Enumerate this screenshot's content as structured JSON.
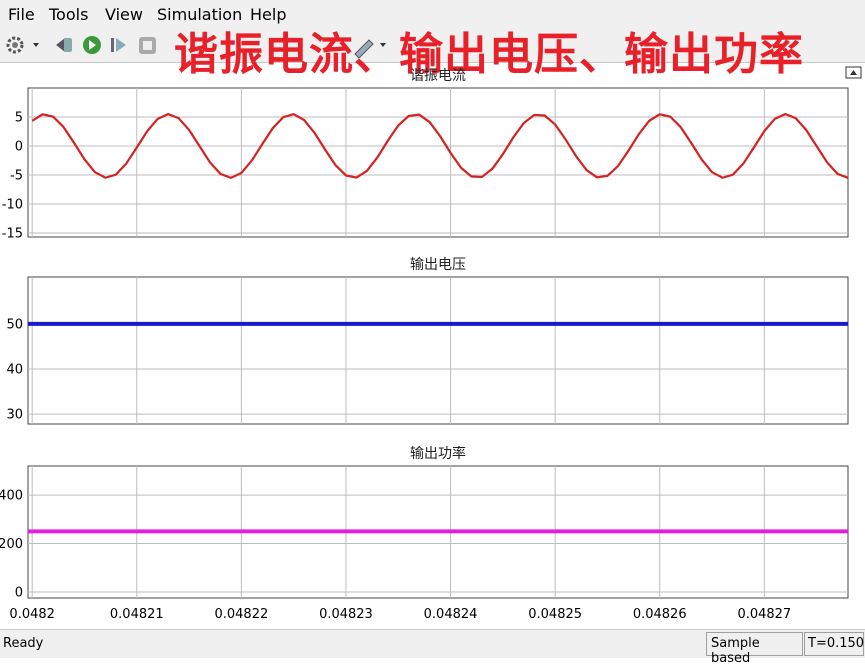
{
  "menu": [
    "File",
    "Tools",
    "View",
    "Simulation",
    "Help"
  ],
  "overlay_title": "谐振电流、输出电压、输出功率",
  "status": {
    "left": "Ready",
    "mode": "Sample based",
    "time": "T=0.150"
  },
  "chart_data": [
    {
      "type": "line",
      "title": "谐振电流",
      "color": "#d42222",
      "x": [
        0.0482,
        0.048201,
        0.048202,
        0.048203,
        0.048204,
        0.048205,
        0.048206,
        0.048207,
        0.048208,
        0.048209,
        0.04821,
        0.048211,
        0.048212,
        0.048213,
        0.048214,
        0.048215,
        0.048216,
        0.048217,
        0.048218,
        0.048219,
        0.04822,
        0.048221,
        0.048222,
        0.048223,
        0.048224,
        0.048225,
        0.048226,
        0.048227,
        0.048228,
        0.048229,
        0.04823,
        0.048231,
        0.048232,
        0.048233,
        0.048234,
        0.048235,
        0.048236,
        0.048237,
        0.048238,
        0.048239,
        0.04824,
        0.048241,
        0.048242,
        0.048243,
        0.048244,
        0.048245,
        0.048246,
        0.048247,
        0.048248,
        0.048249,
        0.04825,
        0.048251,
        0.048252,
        0.048253,
        0.048254,
        0.048255,
        0.048256,
        0.048257,
        0.048258,
        0.048259,
        0.04826,
        0.048261,
        0.048262,
        0.048263,
        0.048264,
        0.048265,
        0.048266,
        0.048267,
        0.048268,
        0.048269,
        0.04827,
        0.048271,
        0.048272,
        0.048273,
        0.048274,
        0.048275,
        0.048276,
        0.048277,
        0.048278
      ],
      "values": [
        4.35,
        5.46,
        5.06,
        3.26,
        0.56,
        -2.3,
        -4.52,
        -5.48,
        -4.94,
        -3.02,
        -0.26,
        2.56,
        4.68,
        5.5,
        4.8,
        2.77,
        -0.03,
        -2.82,
        -4.82,
        -5.5,
        -4.65,
        -2.51,
        0.32,
        3.06,
        4.96,
        5.48,
        4.48,
        2.25,
        -0.61,
        -3.3,
        -5.08,
        -5.45,
        -4.31,
        -1.98,
        0.9,
        3.53,
        5.18,
        5.4,
        4.12,
        1.7,
        -1.19,
        -3.75,
        -5.27,
        -5.34,
        -3.92,
        -1.42,
        1.48,
        3.96,
        5.35,
        5.26,
        3.71,
        1.13,
        -1.75,
        -4.16,
        -5.41,
        -5.16,
        -3.49,
        -0.84,
        2.03,
        4.35,
        5.46,
        5.06,
        3.26,
        0.56,
        -2.3,
        -4.52,
        -5.48,
        -4.94,
        -3.02,
        -0.26,
        2.56,
        4.68,
        5.5,
        4.8,
        2.77,
        -0.03,
        -2.82,
        -4.82,
        -5.5
      ],
      "xlim": [
        0.0481996,
        0.048278
      ],
      "xticks": [
        0.0482,
        0.04821,
        0.04822,
        0.04823,
        0.04824,
        0.04825,
        0.04826,
        0.04827
      ],
      "ylim": [
        -15.7,
        10
      ],
      "yticks": [
        5,
        0,
        -5,
        -10,
        -15
      ],
      "grid": true
    },
    {
      "type": "line",
      "title": "输出电压",
      "color": "#1a1ad0",
      "x": [
        0.0481996,
        0.048278
      ],
      "values": [
        50,
        50
      ],
      "xlim": [
        0.0481996,
        0.048278
      ],
      "xticks": [
        0.0482,
        0.04821,
        0.04822,
        0.04823,
        0.04824,
        0.04825,
        0.04826,
        0.04827
      ],
      "ylim": [
        27.8,
        60.4
      ],
      "yticks": [
        50,
        40,
        30
      ],
      "grid": true
    },
    {
      "type": "line",
      "title": "输出功率",
      "color": "#e020e0",
      "x": [
        0.0481996,
        0.048278
      ],
      "values": [
        250,
        250
      ],
      "xlim": [
        0.0481996,
        0.048278
      ],
      "xticks": [
        0.0482,
        0.04821,
        0.04822,
        0.04823,
        0.04824,
        0.04825,
        0.04826,
        0.04827
      ],
      "ylim": [
        -25,
        520
      ],
      "yticks": [
        400,
        200,
        0
      ],
      "grid": true,
      "show_xtick_labels": true
    }
  ]
}
